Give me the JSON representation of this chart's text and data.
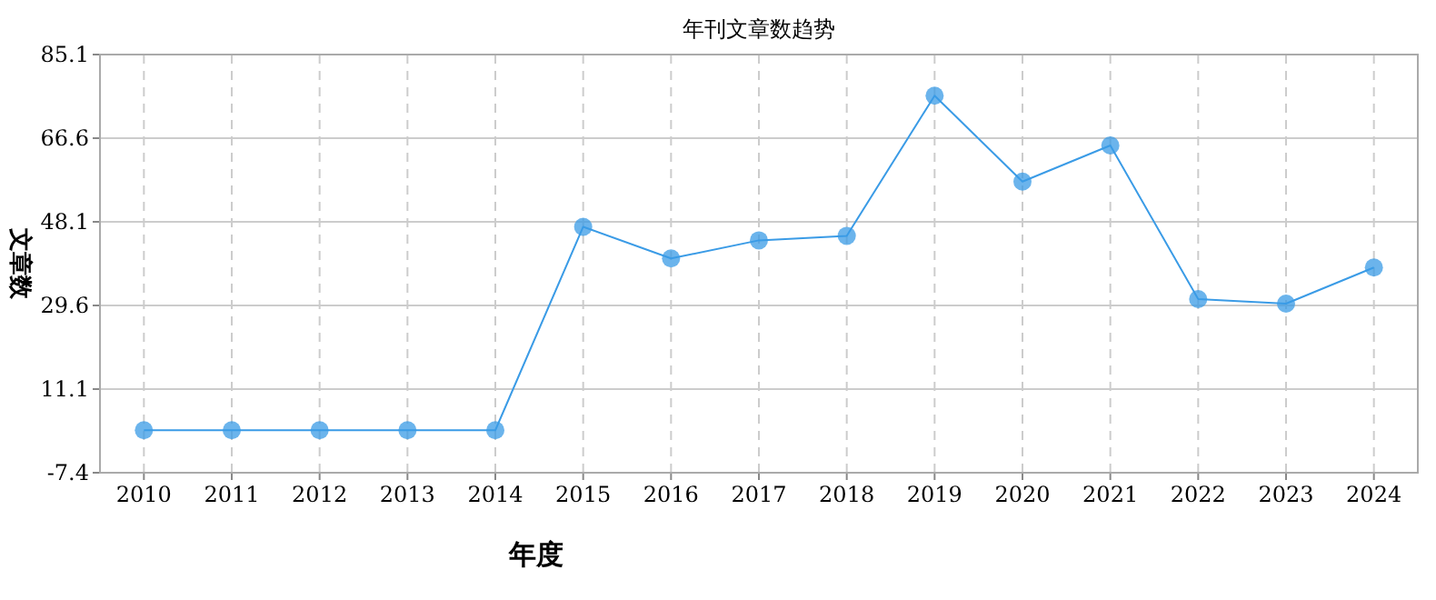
{
  "chart_data": {
    "type": "line",
    "title": "年刊文章数趋势",
    "xlabel": "年度",
    "ylabel": "文章数",
    "categories": [
      "2010",
      "2011",
      "2012",
      "2013",
      "2014",
      "2015",
      "2016",
      "2017",
      "2018",
      "2019",
      "2020",
      "2021",
      "2022",
      "2023",
      "2024"
    ],
    "series": [
      {
        "color": "#3a9be6",
        "values": [
          2,
          2,
          2,
          2,
          2,
          47,
          40,
          44,
          45,
          76,
          57,
          65,
          31,
          30,
          38
        ]
      }
    ],
    "ylim": [
      -7.4,
      85.1
    ],
    "yticks": [
      -7.4,
      11.1,
      29.6,
      48.1,
      66.6,
      85.1
    ],
    "grid": true,
    "marker": "circle",
    "line_style": "solid"
  }
}
